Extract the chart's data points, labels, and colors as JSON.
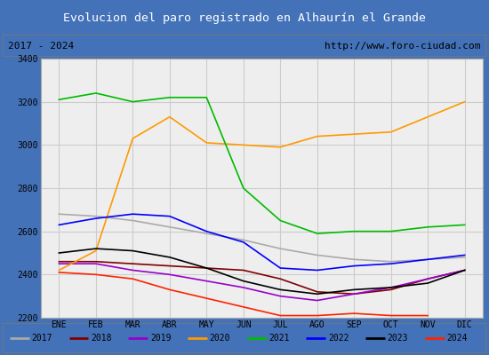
{
  "title": "Evolucion del paro registrado en Alhaurín el Grande",
  "subtitle_left": "2017 - 2024",
  "subtitle_right": "http://www.foro-ciudad.com",
  "months": [
    "ENE",
    "FEB",
    "MAR",
    "ABR",
    "MAY",
    "JUN",
    "JUL",
    "AGO",
    "SEP",
    "OCT",
    "NOV",
    "DIC"
  ],
  "ylim": [
    2200,
    3400
  ],
  "yticks": [
    2200,
    2400,
    2600,
    2800,
    3000,
    3200,
    3400
  ],
  "series": {
    "2017": {
      "color": "#aaaaaa",
      "data": [
        2680,
        2670,
        2650,
        2620,
        2590,
        2560,
        2520,
        2490,
        2470,
        2460,
        2470,
        2480
      ]
    },
    "2018": {
      "color": "#800000",
      "data": [
        2460,
        2460,
        2450,
        2440,
        2430,
        2420,
        2380,
        2320,
        2310,
        2330,
        2380,
        2420
      ]
    },
    "2019": {
      "color": "#9900cc",
      "data": [
        2450,
        2450,
        2420,
        2400,
        2370,
        2340,
        2300,
        2280,
        2310,
        2340,
        2380,
        2420
      ]
    },
    "2020": {
      "color": "#ff9900",
      "data": [
        2420,
        2510,
        3030,
        3130,
        3010,
        3000,
        2990,
        3040,
        3050,
        3060,
        3130,
        3200
      ]
    },
    "2021": {
      "color": "#00bb00",
      "data": [
        3210,
        3240,
        3200,
        3220,
        3220,
        2800,
        2650,
        2590,
        2600,
        2600,
        2620,
        2630
      ]
    },
    "2022": {
      "color": "#0000ff",
      "data": [
        2630,
        2660,
        2680,
        2670,
        2600,
        2550,
        2430,
        2420,
        2440,
        2450,
        2470,
        2490
      ]
    },
    "2023": {
      "color": "#000000",
      "data": [
        2500,
        2520,
        2510,
        2480,
        2430,
        2370,
        2330,
        2310,
        2330,
        2340,
        2360,
        2420
      ]
    },
    "2024": {
      "color": "#ff2200",
      "data": [
        2410,
        2400,
        2380,
        2330,
        2290,
        2250,
        2210,
        2210,
        2220,
        2210,
        2210,
        null
      ]
    }
  },
  "title_bg": "#4d7db5",
  "title_color": "#ffffff",
  "subtitle_bg": "#e8e8e8",
  "subtitle_color": "#000000",
  "plot_bg": "#eeeeee",
  "grid_color": "#cccccc",
  "outer_bg": "#4472b8"
}
